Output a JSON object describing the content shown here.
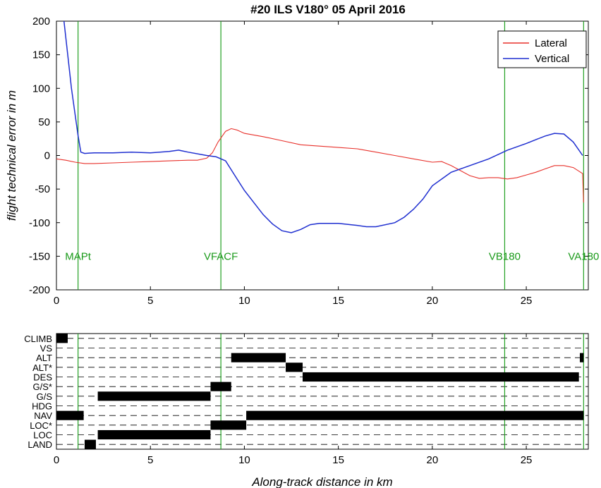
{
  "title": "#20 ILS V180°  05 April 2016",
  "colors": {
    "lateral": "#e8302a",
    "vertical": "#1f2fd0",
    "marker": "#22a022",
    "mode": "#000000"
  },
  "chart_data": [
    {
      "type": "line",
      "ylabel": "flight technical error in m",
      "xlim": [
        0,
        28.3
      ],
      "ylim": [
        -200,
        200
      ],
      "xticks": [
        0,
        5,
        10,
        15,
        20,
        25
      ],
      "yticks": [
        -200,
        -150,
        -100,
        -50,
        0,
        50,
        100,
        150,
        200
      ],
      "legend": "top-right",
      "markers": [
        {
          "label": "MAPt",
          "x": 1.15
        },
        {
          "label": "VFACF",
          "x": 8.75
        },
        {
          "label": "VB180",
          "x": 23.85
        },
        {
          "label": "VA180",
          "x": 28.05
        }
      ],
      "series": [
        {
          "name": "Lateral",
          "x": [
            0,
            0.5,
            1,
            1.5,
            2,
            3,
            4,
            5,
            6,
            7,
            7.5,
            8,
            8.3,
            8.6,
            9,
            9.3,
            9.6,
            10,
            11,
            12,
            13,
            14,
            15,
            16,
            17,
            18,
            19,
            20,
            20.5,
            21,
            22,
            22.5,
            23,
            23.5,
            24,
            24.5,
            25,
            25.5,
            26,
            26.5,
            27,
            27.5,
            28,
            28.05
          ],
          "values": [
            -5,
            -7,
            -10,
            -12,
            -12,
            -11,
            -10,
            -9,
            -8,
            -7,
            -7,
            -4,
            4,
            20,
            36,
            40,
            38,
            33,
            28,
            22,
            16,
            14,
            12,
            10,
            5,
            0,
            -5,
            -10,
            -9,
            -15,
            -30,
            -34,
            -33,
            -33,
            -35,
            -33,
            -29,
            -25,
            -20,
            -15,
            -15,
            -18,
            -27,
            -70
          ]
        },
        {
          "name": "Vertical",
          "x": [
            0.4,
            0.6,
            0.8,
            1,
            1.15,
            1.3,
            1.5,
            2,
            3,
            4,
            5,
            6,
            6.5,
            7,
            8,
            8.5,
            9,
            9.5,
            10,
            10.5,
            11,
            11.5,
            12,
            12.5,
            13,
            13.5,
            14,
            15,
            16,
            16.5,
            17,
            18,
            18.5,
            19,
            19.5,
            20,
            21,
            22,
            23,
            24,
            25,
            26,
            26.5,
            27,
            27.5,
            28
          ],
          "values": [
            200,
            150,
            100,
            60,
            30,
            5,
            3,
            4,
            4,
            5,
            4,
            6,
            8,
            5,
            0,
            -2,
            -8,
            -30,
            -52,
            -70,
            -88,
            -102,
            -112,
            -115,
            -110,
            -103,
            -101,
            -101,
            -104,
            -106,
            -106,
            -100,
            -92,
            -80,
            -65,
            -45,
            -25,
            -15,
            -5,
            8,
            18,
            29,
            33,
            32,
            20,
            0
          ]
        }
      ]
    },
    {
      "type": "timeline",
      "xlabel": "Along-track distance in km",
      "xlim": [
        0,
        28.3
      ],
      "xticks": [
        0,
        5,
        10,
        15,
        20,
        25
      ],
      "categories": [
        "CLIMB",
        "VS",
        "ALT",
        "ALT*",
        "DES",
        "G/S*",
        "G/S",
        "HDG",
        "NAV",
        "LOC*",
        "LOC",
        "LAND"
      ],
      "markers": [
        1.15,
        8.75,
        23.85,
        28.05
      ],
      "intervals": [
        {
          "mode": "CLIMB",
          "start": 0.0,
          "end": 0.6
        },
        {
          "mode": "ALT",
          "start": 9.3,
          "end": 12.2
        },
        {
          "mode": "ALT",
          "start": 27.85,
          "end": 28.05
        },
        {
          "mode": "ALT*",
          "start": 12.2,
          "end": 13.1
        },
        {
          "mode": "DES",
          "start": 13.1,
          "end": 27.8
        },
        {
          "mode": "G/S*",
          "start": 8.2,
          "end": 9.3
        },
        {
          "mode": "G/S",
          "start": 2.2,
          "end": 8.2
        },
        {
          "mode": "NAV",
          "start": 0.0,
          "end": 1.45
        },
        {
          "mode": "NAV",
          "start": 10.1,
          "end": 28.05
        },
        {
          "mode": "LOC*",
          "start": 8.2,
          "end": 10.1
        },
        {
          "mode": "LOC",
          "start": 2.2,
          "end": 8.2
        },
        {
          "mode": "LAND",
          "start": 1.5,
          "end": 2.1
        }
      ]
    }
  ]
}
